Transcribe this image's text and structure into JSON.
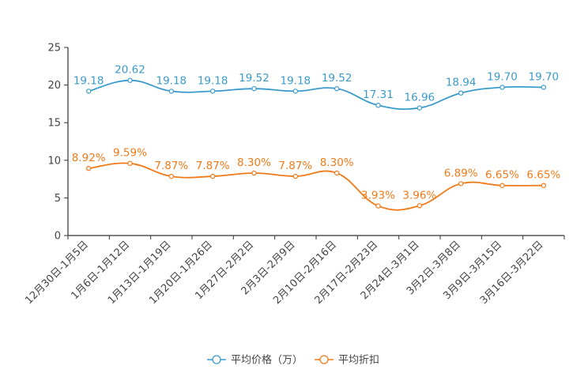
{
  "chart_data": {
    "type": "line",
    "title": "",
    "xlabel": "",
    "ylabel": "",
    "ylim": [
      0,
      25
    ],
    "yticks": [
      0,
      5,
      10,
      15,
      20,
      25
    ],
    "categories": [
      "12月30日-1月5日",
      "1月6日-1月12日",
      "1月13日-1月19日",
      "1月20日-1月26日",
      "1月27日-2月2日",
      "2月3日-2月9日",
      "2月10日-2月16日",
      "2月17日-2月23日",
      "2月24日-3月1日",
      "3月2日-3月8日",
      "3月9日-3月15日",
      "3月16日-3月22日"
    ],
    "series": [
      {
        "name": "平均价格（万）",
        "color": "#3a9bcb",
        "values": [
          19.18,
          20.62,
          19.18,
          19.18,
          19.52,
          19.18,
          19.52,
          17.31,
          16.96,
          18.94,
          19.7,
          19.7
        ],
        "labels": [
          "19.18",
          "20.62",
          "19.18",
          "19.18",
          "19.52",
          "19.18",
          "19.52",
          "17.31",
          "16.96",
          "18.94",
          "19.70",
          "19.70"
        ]
      },
      {
        "name": "平均折扣",
        "color": "#f07a18",
        "values": [
          8.92,
          9.59,
          7.87,
          7.87,
          8.3,
          7.87,
          8.3,
          3.93,
          3.96,
          6.89,
          6.65,
          6.65
        ],
        "labels": [
          "8.92%",
          "9.59%",
          "7.87%",
          "7.87%",
          "8.30%",
          "7.87%",
          "8.30%",
          "3.93%",
          "3.96%",
          "6.89%",
          "6.65%",
          "6.65%"
        ]
      }
    ],
    "grid": false,
    "legend_position": "bottom-center"
  }
}
